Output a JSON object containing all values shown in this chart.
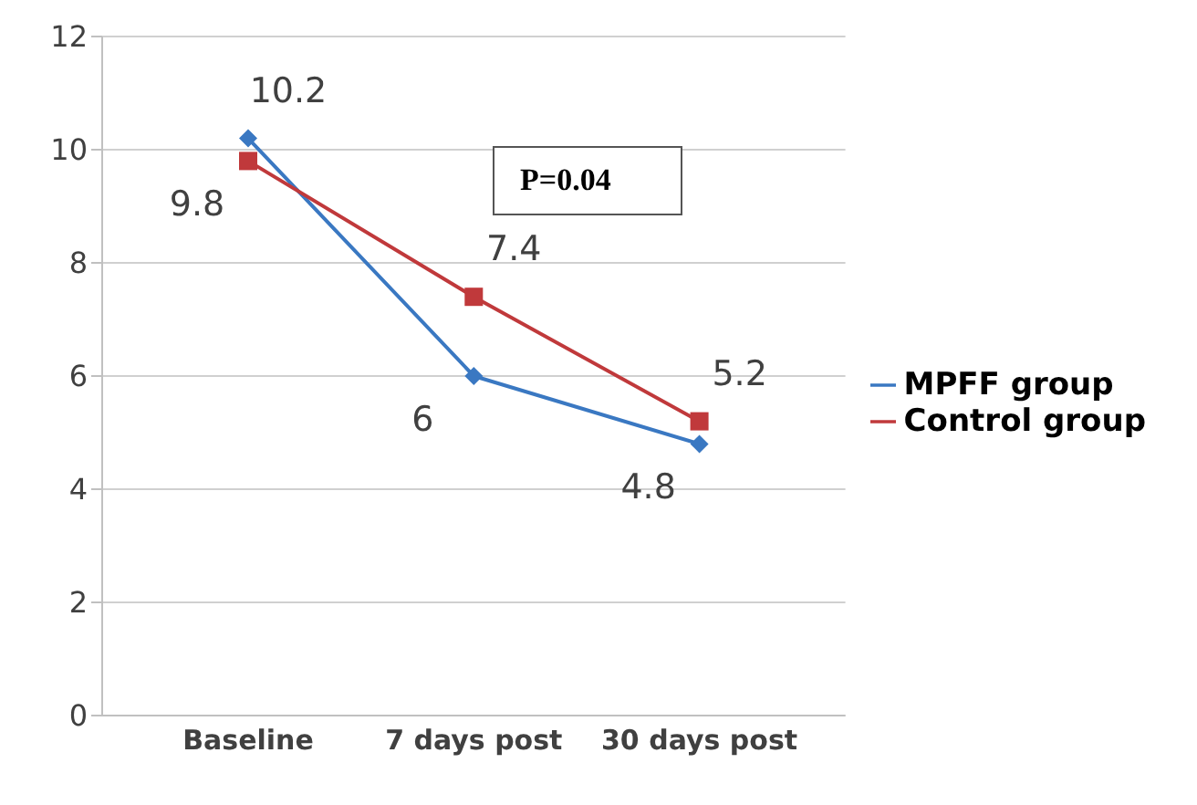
{
  "chart_data": {
    "type": "line",
    "categories": [
      "Baseline",
      "7 days post",
      "30 days post"
    ],
    "series": [
      {
        "name": "MPFF group",
        "color": "#3a78c2",
        "values": [
          10.2,
          6,
          4.8
        ],
        "marker": "diamond"
      },
      {
        "name": "Control group",
        "color": "#c0393b",
        "values": [
          9.8,
          7.4,
          5.2
        ],
        "marker": "square"
      }
    ],
    "ylim": [
      0,
      12
    ],
    "yticks": [
      0,
      2,
      4,
      6,
      8,
      10,
      12
    ],
    "grid": "y",
    "legend": "right",
    "data_labels": true,
    "annotations": [
      "P=0.04"
    ]
  }
}
